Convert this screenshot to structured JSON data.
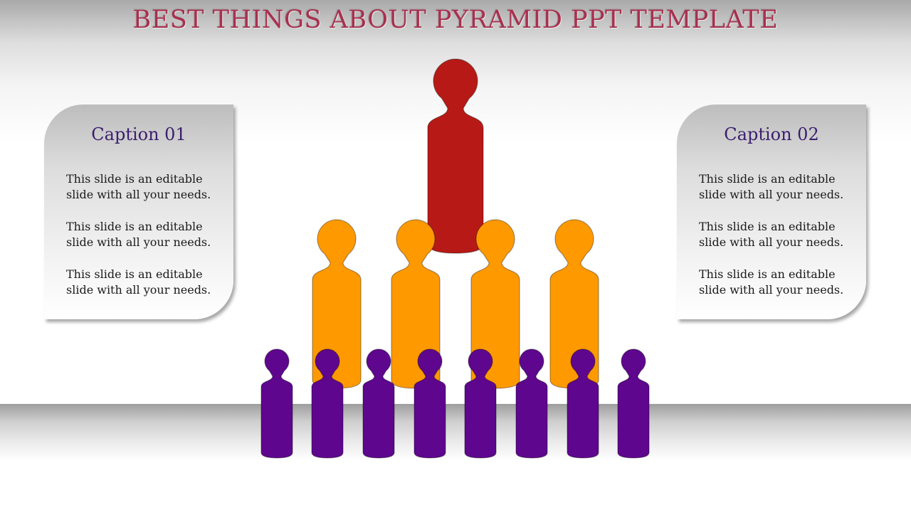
{
  "title": "BEST THINGS ABOUT PYRAMID PPT TEMPLATE",
  "colors": {
    "title": "#a8304f",
    "top_figure": "#b71a16",
    "middle_figures": "#ff9900",
    "bottom_figures": "#5e068e",
    "caption_heading": "#3b1e6e"
  },
  "captions": [
    {
      "heading": "Caption 01",
      "items": [
        "This slide is an editable slide with all your needs.",
        "This slide is an editable slide with all your needs.",
        "This slide is an editable slide with all your needs."
      ]
    },
    {
      "heading": "Caption 02",
      "items": [
        "This slide is an editable slide with all your needs.",
        "This slide is an editable slide with all your needs.",
        "This slide is an editable slide with all your needs."
      ]
    }
  ],
  "pyramid": {
    "top_count": 1,
    "middle_count": 4,
    "bottom_count": 8
  }
}
